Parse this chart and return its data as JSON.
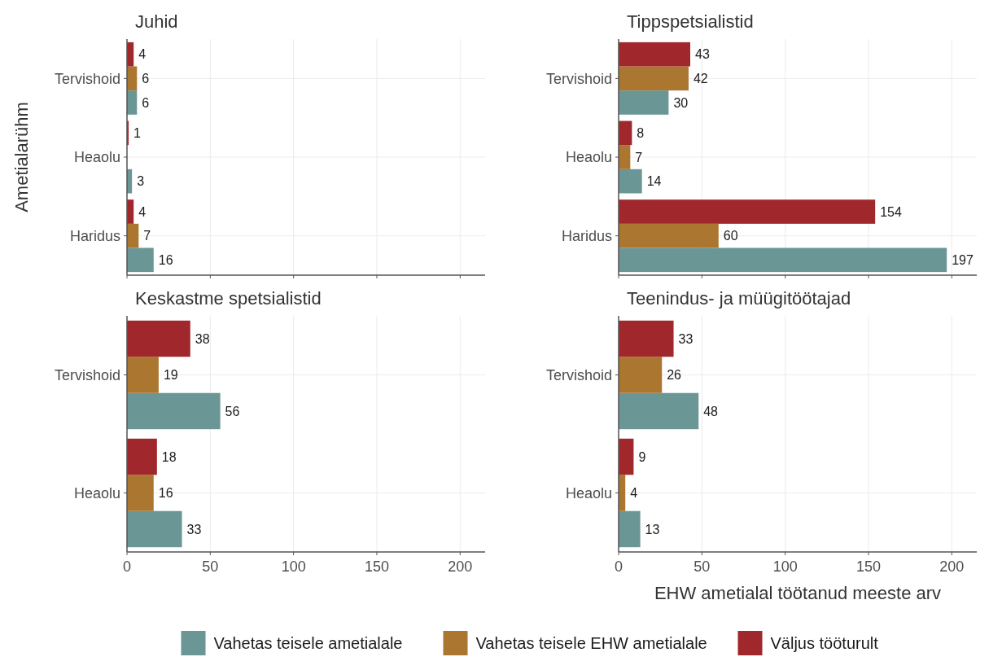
{
  "chart_data": [
    {
      "type": "bar",
      "orientation": "horizontal",
      "title": "Juhid",
      "ylabel": "Ametialarühm",
      "categories": [
        "Tervishoid",
        "Heaolu",
        "Haridus"
      ],
      "series": [
        {
          "name": "Vahetas teisele ametialale",
          "color": "#6a9696",
          "values": [
            6,
            3,
            16
          ]
        },
        {
          "name": "Vahetas teisele EHW ametialale",
          "color": "#ab7630",
          "values": [
            6,
            null,
            7
          ]
        },
        {
          "name": "Väljus tööturult",
          "color": "#a0282c",
          "values": [
            4,
            1,
            4
          ]
        }
      ],
      "xlim": [
        0,
        215
      ],
      "xticks": [
        0,
        50,
        100,
        150,
        200
      ],
      "tick_labels": "y",
      "grid": true,
      "data_labels": true,
      "legend": "bottom"
    },
    {
      "type": "bar",
      "orientation": "horizontal",
      "title": "Tippspetsialistid",
      "categories": [
        "Tervishoid",
        "Heaolu",
        "Haridus"
      ],
      "series": [
        {
          "name": "Vahetas teisele ametialale",
          "color": "#6a9696",
          "values": [
            30,
            14,
            197
          ]
        },
        {
          "name": "Vahetas teisele EHW ametialale",
          "color": "#ab7630",
          "values": [
            42,
            7,
            60
          ]
        },
        {
          "name": "Väljus tööturult",
          "color": "#a0282c",
          "values": [
            43,
            8,
            154
          ]
        }
      ],
      "xlim": [
        0,
        215
      ],
      "xticks": [
        0,
        50,
        100,
        150,
        200
      ],
      "tick_labels": "y",
      "grid": true,
      "data_labels": true
    },
    {
      "type": "bar",
      "orientation": "horizontal",
      "title": "Keskastme spetsialistid",
      "categories": [
        "Tervishoid",
        "Heaolu"
      ],
      "series": [
        {
          "name": "Vahetas teisele ametialale",
          "color": "#6a9696",
          "values": [
            56,
            33
          ]
        },
        {
          "name": "Vahetas teisele EHW ametialale",
          "color": "#ab7630",
          "values": [
            19,
            16
          ]
        },
        {
          "name": "Väljus tööturult",
          "color": "#a0282c",
          "values": [
            38,
            18
          ]
        }
      ],
      "xlim": [
        0,
        215
      ],
      "xticks": [
        0,
        50,
        100,
        150,
        200
      ],
      "grid": true,
      "data_labels": true
    },
    {
      "type": "bar",
      "orientation": "horizontal",
      "title": "Teenindus- ja müügitöötajad",
      "xlabel": "EHW ametialal töötanud meeste arv",
      "categories": [
        "Tervishoid",
        "Heaolu"
      ],
      "series": [
        {
          "name": "Vahetas teisele ametialale",
          "color": "#6a9696",
          "values": [
            48,
            13
          ]
        },
        {
          "name": "Vahetas teisele EHW ametialale",
          "color": "#ab7630",
          "values": [
            26,
            4
          ]
        },
        {
          "name": "Väljus tööturult",
          "color": "#a0282c",
          "values": [
            33,
            9
          ]
        }
      ],
      "xlim": [
        0,
        215
      ],
      "xticks": [
        0,
        50,
        100,
        150,
        200
      ],
      "grid": true,
      "data_labels": true
    }
  ]
}
